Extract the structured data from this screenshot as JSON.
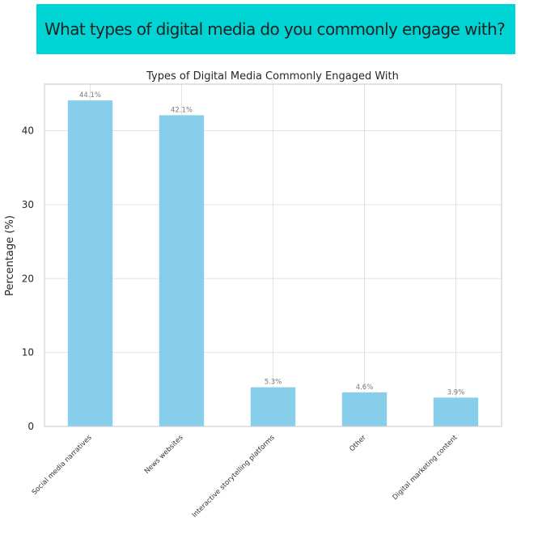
{
  "question": "What types of digital media do you commonly engage with?",
  "chart_data": {
    "type": "bar",
    "title": "Types of Digital Media Commonly Engaged With",
    "xlabel": "",
    "ylabel": "Percentage (%)",
    "categories": [
      "Social media narratives",
      "News websites",
      "Interactive storytelling platforms",
      "Other",
      "Digital marketing content"
    ],
    "values": [
      44.1,
      42.1,
      5.3,
      4.6,
      3.9
    ],
    "data_labels": [
      "44.1%",
      "42.1%",
      "5.3%",
      "4.6%",
      "3.9%"
    ],
    "yticks": [
      0,
      10,
      20,
      30,
      40
    ],
    "ylim": [
      0,
      46.3
    ],
    "grid": true,
    "bar_color": "#87ceeb",
    "grid_color": "#e2e2e2",
    "axes_edge_color": "#d0d0d0"
  }
}
